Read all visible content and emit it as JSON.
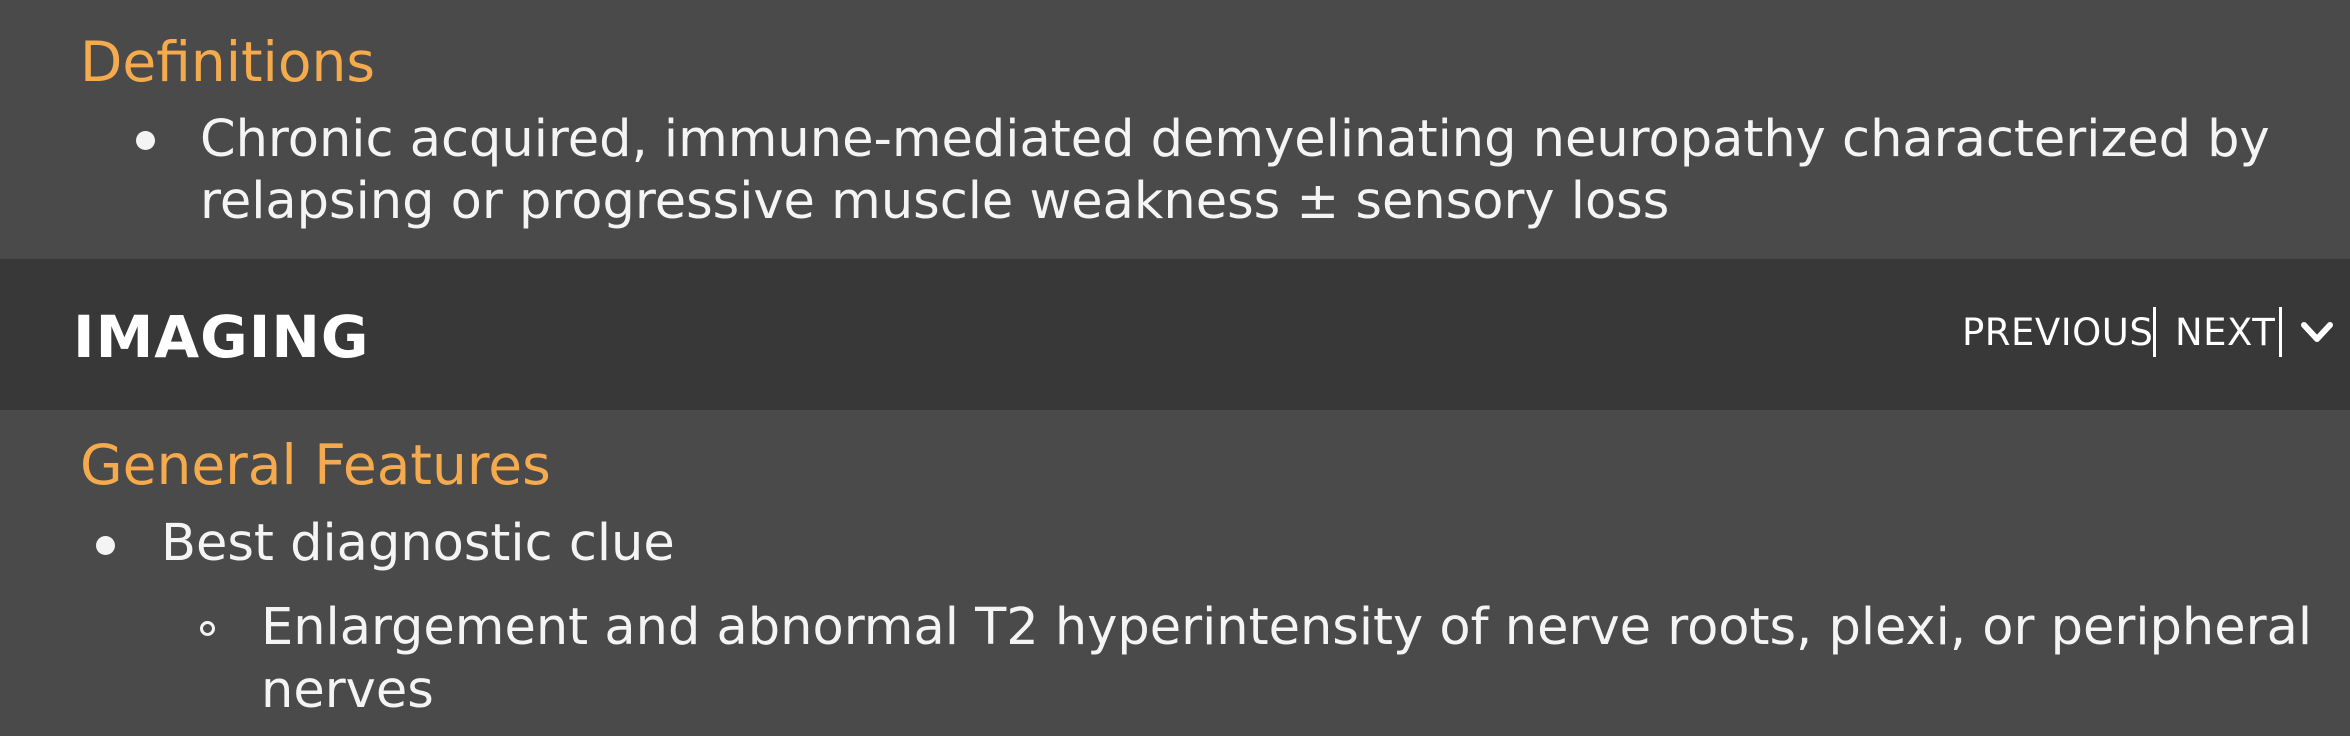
{
  "colors": {
    "page_background": "#4a4a4a",
    "section_bar_background": "#383838",
    "subheading": "#f5ab4d",
    "body_text": "#f4f4f4",
    "nav_text": "#ffffff"
  },
  "definitions": {
    "heading": "Definitions",
    "bullet_lines": [
      "Chronic acquired, immune-mediated demyelinating neuropathy characterized by",
      "relapsing or progressive muscle weakness ± sensory loss"
    ]
  },
  "imaging": {
    "title": "IMAGING",
    "nav": {
      "previous": "PREVIOUS",
      "next": "NEXT",
      "toggle_icon": "chevron-down-icon"
    }
  },
  "general_features": {
    "heading": "General Features",
    "bullet": "Best diagnostic clue",
    "sub_bullet_lines": [
      "Enlargement and abnormal T2 hyperintensity of nerve roots, plexi, or peripheral",
      "nerves"
    ]
  }
}
